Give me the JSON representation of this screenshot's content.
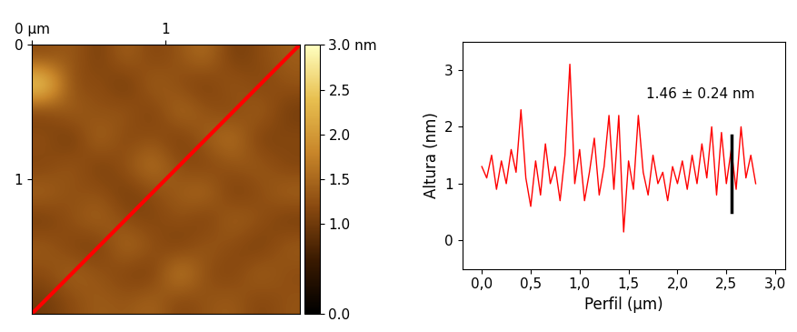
{
  "chart_data": [
    {
      "type": "heatmap",
      "xlim": [
        0,
        2
      ],
      "ylim": [
        2,
        0
      ],
      "xticks": [
        {
          "value": 0,
          "label": "0 µm"
        },
        1
      ],
      "yticks": [
        0,
        1
      ],
      "cells": [
        [
          1.2,
          1.4,
          1.0,
          1.5,
          1.1,
          1.3,
          1.6,
          1.0,
          1.2,
          1.4
        ],
        [
          2.8,
          1.1,
          1.3,
          0.9,
          1.5,
          1.2,
          1.0,
          1.4,
          1.1,
          1.3
        ],
        [
          1.0,
          1.5,
          1.2,
          1.4,
          1.0,
          1.6,
          1.3,
          1.1,
          1.5,
          1.0
        ],
        [
          1.3,
          0.9,
          1.6,
          1.1,
          1.3,
          1.0,
          1.4,
          1.7,
          1.0,
          1.2
        ],
        [
          1.1,
          1.4,
          1.0,
          1.3,
          1.7,
          1.2,
          1.1,
          1.3,
          1.4,
          1.1
        ],
        [
          1.5,
          1.2,
          1.3,
          1.0,
          1.2,
          1.4,
          1.6,
          1.0,
          1.2,
          1.5
        ],
        [
          1.0,
          1.3,
          1.5,
          1.2,
          1.1,
          1.3,
          1.0,
          1.5,
          1.3,
          1.0
        ],
        [
          1.4,
          1.1,
          1.0,
          1.6,
          1.3,
          1.0,
          1.4,
          1.2,
          1.0,
          1.4
        ],
        [
          1.2,
          1.5,
          1.3,
          1.1,
          1.0,
          1.9,
          1.2,
          1.1,
          1.5,
          1.2
        ],
        [
          1.0,
          1.2,
          1.4,
          1.3,
          1.5,
          1.1,
          1.3,
          1.4,
          1.1,
          1.3
        ]
      ],
      "colorbar": {
        "range": [
          0,
          3.0
        ],
        "ticks": [
          {
            "value": 0,
            "label": "0.0"
          },
          {
            "value": 1.0,
            "label": "1.0"
          },
          {
            "value": 1.5,
            "label": "1.5"
          },
          {
            "value": 2.0,
            "label": "2.0"
          },
          {
            "value": 2.5,
            "label": "2.5"
          },
          {
            "value": 3.0,
            "label": "3.0 nm"
          }
        ]
      },
      "line": {
        "x": [
          0,
          2
        ],
        "y": [
          2,
          0
        ],
        "color": "#ff0000"
      }
    },
    {
      "type": "line",
      "x_label": "Perfil (µm)",
      "y_label": "Altura (nm)",
      "annotation": "1.46 ± 0.24 nm",
      "x": [
        0.0,
        0.05,
        0.1,
        0.15,
        0.2,
        0.25,
        0.3,
        0.35,
        0.4,
        0.45,
        0.5,
        0.55,
        0.6,
        0.65,
        0.7,
        0.75,
        0.8,
        0.85,
        0.9,
        0.95,
        1.0,
        1.05,
        1.1,
        1.15,
        1.2,
        1.25,
        1.3,
        1.35,
        1.4,
        1.45,
        1.5,
        1.55,
        1.6,
        1.65,
        1.7,
        1.75,
        1.8,
        1.85,
        1.9,
        1.95,
        2.0,
        2.05,
        2.1,
        2.15,
        2.2,
        2.25,
        2.3,
        2.35,
        2.4,
        2.45,
        2.5,
        2.55,
        2.6,
        2.65,
        2.7,
        2.75,
        2.8
      ],
      "values": [
        1.3,
        1.1,
        1.5,
        0.9,
        1.4,
        1.0,
        1.6,
        1.2,
        2.3,
        1.1,
        0.6,
        1.4,
        0.8,
        1.7,
        1.0,
        1.3,
        0.7,
        1.5,
        3.1,
        1.0,
        1.6,
        0.7,
        1.2,
        1.8,
        0.8,
        1.3,
        2.2,
        0.9,
        2.2,
        0.15,
        1.4,
        0.9,
        2.2,
        1.2,
        0.8,
        1.5,
        1.0,
        1.2,
        0.7,
        1.3,
        1.0,
        1.4,
        0.9,
        1.5,
        1.0,
        1.7,
        1.1,
        2.0,
        0.8,
        1.9,
        1.0,
        1.6,
        0.9,
        2.0,
        1.1,
        1.5,
        1.0
      ],
      "color": "#ff0000",
      "measure": {
        "x": [
          2.55,
          2.55
        ],
        "y": [
          0.5,
          1.85
        ],
        "color": "#000000"
      },
      "xlim": [
        -0.2,
        3.1
      ],
      "ylim": [
        -0.5,
        3.5
      ],
      "xticks": [
        {
          "value": 0,
          "label": "0,0"
        },
        {
          "value": 0.5,
          "label": "0,5"
        },
        {
          "value": 1.0,
          "label": "1,0"
        },
        {
          "value": 1.5,
          "label": "1,5"
        },
        {
          "value": 2.0,
          "label": "2,0"
        },
        {
          "value": 2.5,
          "label": "2,5"
        },
        {
          "value": 3.0,
          "label": "3,0"
        }
      ],
      "yticks": [
        0,
        1,
        2,
        3
      ]
    }
  ]
}
